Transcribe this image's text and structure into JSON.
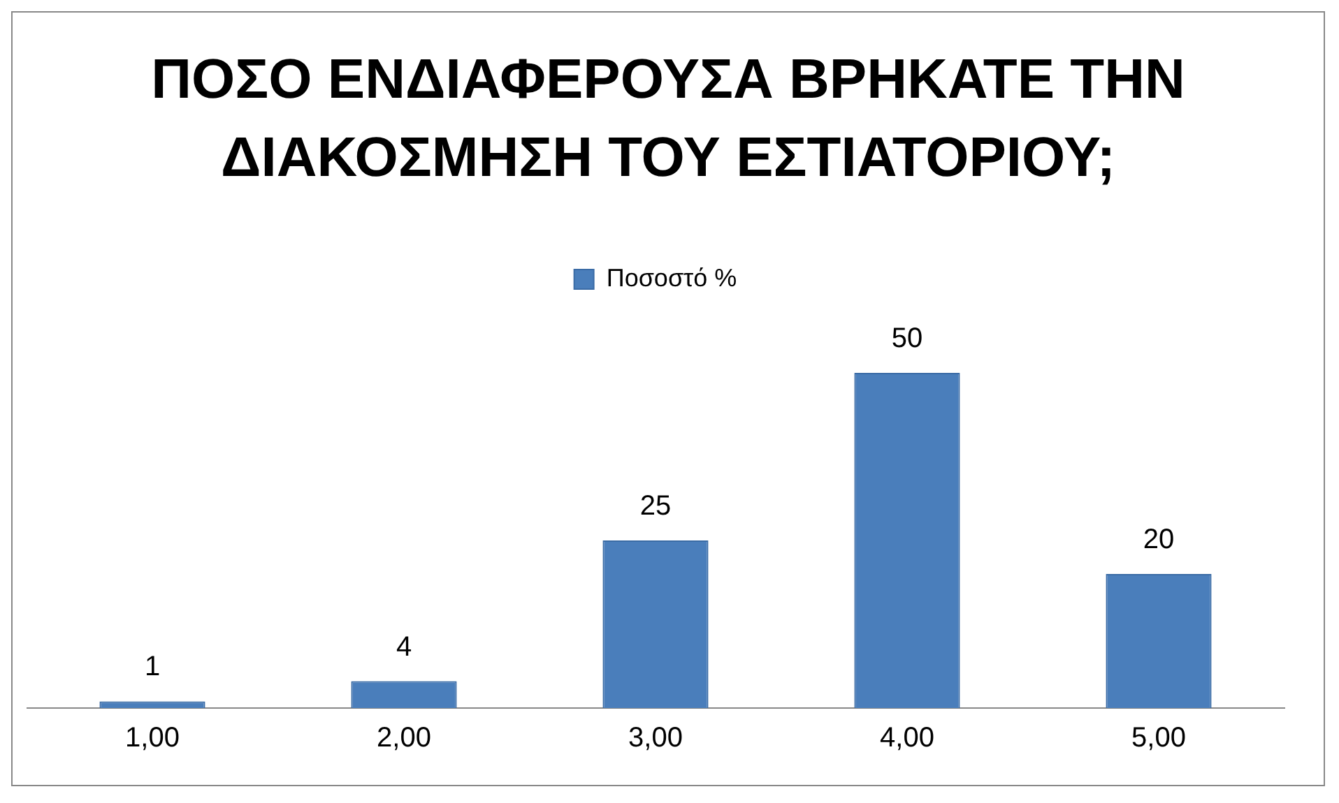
{
  "chart_data": {
    "type": "bar",
    "title": "ΠΟΣΟ ΕΝΔΙΑΦΕΡΟΥΣΑ ΒΡΗΚΑΤΕ ΤΗΝ ΔΙΑΚΟΣΜΗΣΗ ΤΟΥ ΕΣΤΙΑΤΟΡΙΟΥ;",
    "categories": [
      "1,00",
      "2,00",
      "3,00",
      "4,00",
      "5,00"
    ],
    "series": [
      {
        "name": "Ποσοστό %",
        "color": "#4a7ebb",
        "values": [
          1,
          4,
          25,
          50,
          20
        ]
      }
    ],
    "data_labels": true,
    "legend": "top",
    "grid": false
  }
}
